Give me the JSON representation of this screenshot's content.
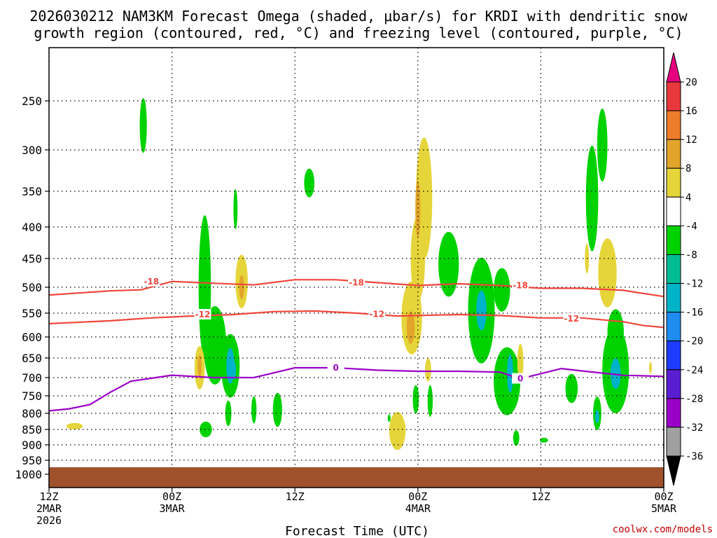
{
  "chart_data": {
    "type": "heatmap",
    "title": "2026030212 NAM3KM Forecast Omega (shaded, µbar/s) for KRDI with dendritic snow growth region (contoured, red, °C) and freezing level (contoured, purple, °C)",
    "title_line1": "2026030212 NAM3KM Forecast Omega (shaded, μbar/s) for KRDI with dendritic snow",
    "title_line2": "growth region (contoured, red, °C) and freezing level (contoured, purple, °C)",
    "xlabel": "Forecast Time (UTC)",
    "ylabel": "",
    "x_range_hours": [
      0,
      60
    ],
    "y_range_mb": [
      1000,
      200
    ],
    "y_scale": "log-pressure",
    "grid": true,
    "x_ticks": [
      {
        "hour": 0,
        "line1": "12Z",
        "line2": "2MAR",
        "line3": "2026"
      },
      {
        "hour": 12,
        "line1": "00Z",
        "line2": "3MAR",
        "line3": ""
      },
      {
        "hour": 24,
        "line1": "12Z",
        "line2": "",
        "line3": ""
      },
      {
        "hour": 36,
        "line1": "00Z",
        "line2": "4MAR",
        "line3": ""
      },
      {
        "hour": 48,
        "line1": "12Z",
        "line2": "",
        "line3": ""
      },
      {
        "hour": 60,
        "line1": "00Z",
        "line2": "5MAR",
        "line3": ""
      }
    ],
    "y_ticks": [
      250,
      300,
      350,
      400,
      450,
      500,
      550,
      600,
      650,
      700,
      750,
      800,
      850,
      900,
      950,
      1000
    ],
    "colorbar": {
      "labels": [
        "20",
        "16",
        "12",
        "8",
        "4",
        "-4",
        "-8",
        "-12",
        "-16",
        "-20",
        "-24",
        "-28",
        "-32",
        "-36"
      ],
      "bins": [
        {
          "lo": 16,
          "hi": 20,
          "color": "#e8383d"
        },
        {
          "lo": 12,
          "hi": 16,
          "color": "#ee7d2a"
        },
        {
          "lo": 8,
          "hi": 12,
          "color": "#e2a52a"
        },
        {
          "lo": 4,
          "hi": 8,
          "color": "#e5d53a"
        },
        {
          "lo": -4,
          "hi": 4,
          "color": "#ffffff"
        },
        {
          "lo": -8,
          "hi": -4,
          "color": "#00d200"
        },
        {
          "lo": -12,
          "hi": -8,
          "color": "#00bd96"
        },
        {
          "lo": -16,
          "hi": -12,
          "color": "#00b4c8"
        },
        {
          "lo": -20,
          "hi": -16,
          "color": "#1e8cf0"
        },
        {
          "lo": -24,
          "hi": -20,
          "color": "#1e3cff"
        },
        {
          "lo": -28,
          "hi": -24,
          "color": "#5a1ed2"
        },
        {
          "lo": -32,
          "hi": -28,
          "color": "#9b00c8"
        },
        {
          "lo": -36,
          "hi": -32,
          "color": "#a0a0a0"
        }
      ],
      "top_arrow_color": "#e6007e",
      "bottom_arrow_color": "#000000"
    },
    "terrain": {
      "color": "#a0522d",
      "surface_mb": 975
    },
    "contours": {
      "dendritic_color": "#f0463c",
      "freezing_color": "#9b00c8",
      "series": [
        {
          "name": "-18",
          "color": "#f0463c",
          "points": [
            [
              0,
              515
            ],
            [
              6,
              507
            ],
            [
              9,
              505
            ],
            [
              12,
              490
            ],
            [
              16,
              493
            ],
            [
              20,
              496
            ],
            [
              24,
              487
            ],
            [
              28,
              487
            ],
            [
              32,
              492
            ],
            [
              36,
              497
            ],
            [
              40,
              494
            ],
            [
              44,
              497
            ],
            [
              48,
              502
            ],
            [
              52,
              502
            ],
            [
              56,
              506
            ],
            [
              60,
              518
            ]
          ],
          "labels": [
            [
              10,
              490
            ],
            [
              30,
              492
            ],
            [
              46,
              497
            ]
          ]
        },
        {
          "name": "-12",
          "color": "#f0463c",
          "points": [
            [
              0,
              572
            ],
            [
              6,
              566
            ],
            [
              10,
              560
            ],
            [
              14,
              556
            ],
            [
              18,
              553
            ],
            [
              22,
              547
            ],
            [
              26,
              546
            ],
            [
              30,
              550
            ],
            [
              34,
              556
            ],
            [
              36,
              555
            ],
            [
              40,
              553
            ],
            [
              44,
              555
            ],
            [
              48,
              560
            ],
            [
              52,
              560
            ],
            [
              56,
              568
            ],
            [
              58,
              576
            ],
            [
              60,
              580
            ]
          ],
          "labels": [
            [
              15,
              553
            ],
            [
              32,
              552
            ],
            [
              51,
              562
            ]
          ]
        },
        {
          "name": "0",
          "color": "#9b00c8",
          "points": [
            [
              0,
              793
            ],
            [
              2,
              787
            ],
            [
              4,
              775
            ],
            [
              6,
              740
            ],
            [
              8,
              710
            ],
            [
              12,
              694
            ],
            [
              16,
              700
            ],
            [
              20,
              700
            ],
            [
              24,
              675
            ],
            [
              28,
              675
            ],
            [
              32,
              681
            ],
            [
              36,
              684
            ],
            [
              40,
              684
            ],
            [
              44,
              686
            ],
            [
              46,
              703
            ],
            [
              48,
              690
            ],
            [
              50,
              677
            ],
            [
              52,
              683
            ],
            [
              56,
              694
            ],
            [
              60,
              697
            ]
          ],
          "labels": [
            [
              28,
              675
            ],
            [
              46,
              703
            ]
          ]
        }
      ]
    },
    "omega_cells": [
      {
        "hour": 9.2,
        "mb": 275,
        "dh": 0.35,
        "dmb": 28,
        "value": -6
      },
      {
        "hour": 25.4,
        "mb": 340,
        "dh": 0.5,
        "dmb": 18,
        "value": -6
      },
      {
        "hour": 18.2,
        "mb": 375,
        "dh": 0.2,
        "dmb": 28,
        "value": -6
      },
      {
        "hour": 15.2,
        "mb": 500,
        "dh": 0.6,
        "dmb": 130,
        "value": -6
      },
      {
        "hour": 16.2,
        "mb": 620,
        "dh": 1.1,
        "dmb": 90,
        "value": -6
      },
      {
        "hour": 17.7,
        "mb": 670,
        "dh": 0.9,
        "dmb": 80,
        "value": -6
      },
      {
        "hour": 17.7,
        "mb": 670,
        "dh": 0.4,
        "dmb": 45,
        "value": -12
      },
      {
        "hour": 18.0,
        "mb": 680,
        "dh": 0.25,
        "dmb": 25,
        "value": -14
      },
      {
        "hour": 17.5,
        "mb": 800,
        "dh": 0.3,
        "dmb": 38,
        "value": -6
      },
      {
        "hour": 15.3,
        "mb": 850,
        "dh": 0.6,
        "dmb": 25,
        "value": -6
      },
      {
        "hour": 20.0,
        "mb": 790,
        "dh": 0.25,
        "dmb": 40,
        "value": -6
      },
      {
        "hour": 22.3,
        "mb": 790,
        "dh": 0.45,
        "dmb": 50,
        "value": -6
      },
      {
        "hour": 18.8,
        "mb": 490,
        "dh": 0.6,
        "dmb": 48,
        "value": 6
      },
      {
        "hour": 18.8,
        "mb": 500,
        "dh": 0.25,
        "dmb": 22,
        "value": 10
      },
      {
        "hour": 14.7,
        "mb": 675,
        "dh": 0.5,
        "dmb": 55,
        "value": 6
      },
      {
        "hour": 14.7,
        "mb": 670,
        "dh": 0.2,
        "dmb": 28,
        "value": 10
      },
      {
        "hour": 2.5,
        "mb": 840,
        "dh": 0.8,
        "dmb": 10,
        "value": 6
      },
      {
        "hour": 36.6,
        "mb": 360,
        "dh": 0.8,
        "dmb": 80,
        "value": 6
      },
      {
        "hour": 36.0,
        "mb": 450,
        "dh": 0.7,
        "dmb": 70,
        "value": 6
      },
      {
        "hour": 36.0,
        "mb": 375,
        "dh": 0.25,
        "dmb": 40,
        "value": 10
      },
      {
        "hour": 35.4,
        "mb": 560,
        "dh": 1.0,
        "dmb": 75,
        "value": 6
      },
      {
        "hour": 35.3,
        "mb": 580,
        "dh": 0.4,
        "dmb": 35,
        "value": 11
      },
      {
        "hour": 34.0,
        "mb": 855,
        "dh": 0.8,
        "dmb": 60,
        "value": 6
      },
      {
        "hour": 37.0,
        "mb": 680,
        "dh": 0.3,
        "dmb": 30,
        "value": 6
      },
      {
        "hour": 39.0,
        "mb": 460,
        "dh": 1.0,
        "dmb": 55,
        "value": -6
      },
      {
        "hour": 35.8,
        "mb": 760,
        "dh": 0.3,
        "dmb": 40,
        "value": -6
      },
      {
        "hour": 37.2,
        "mb": 765,
        "dh": 0.25,
        "dmb": 45,
        "value": -6
      },
      {
        "hour": 33.2,
        "mb": 815,
        "dh": 0.1,
        "dmb": 12,
        "value": -6
      },
      {
        "hour": 42.2,
        "mb": 545,
        "dh": 1.3,
        "dmb": 105,
        "value": -6
      },
      {
        "hour": 42.2,
        "mb": 545,
        "dh": 0.5,
        "dmb": 40,
        "value": -12
      },
      {
        "hour": 44.2,
        "mb": 505,
        "dh": 0.8,
        "dmb": 40,
        "value": -6
      },
      {
        "hour": 44.7,
        "mb": 710,
        "dh": 1.3,
        "dmb": 90,
        "value": -6
      },
      {
        "hour": 45.0,
        "mb": 690,
        "dh": 0.3,
        "dmb": 50,
        "value": -14
      },
      {
        "hour": 46.0,
        "mb": 660,
        "dh": 0.3,
        "dmb": 45,
        "value": 6
      },
      {
        "hour": 45.6,
        "mb": 878,
        "dh": 0.3,
        "dmb": 25,
        "value": -6
      },
      {
        "hour": 48.3,
        "mb": 885,
        "dh": 0.4,
        "dmb": 8,
        "value": -6
      },
      {
        "hour": 51.0,
        "mb": 730,
        "dh": 0.6,
        "dmb": 40,
        "value": -6
      },
      {
        "hour": 53.0,
        "mb": 360,
        "dh": 0.6,
        "dmb": 70,
        "value": -6
      },
      {
        "hour": 54.0,
        "mb": 295,
        "dh": 0.5,
        "dmb": 40,
        "value": -6
      },
      {
        "hour": 54.5,
        "mb": 475,
        "dh": 0.9,
        "dmb": 60,
        "value": 6
      },
      {
        "hour": 52.5,
        "mb": 450,
        "dh": 0.2,
        "dmb": 25,
        "value": 6
      },
      {
        "hour": 55.3,
        "mb": 590,
        "dh": 0.8,
        "dmb": 50,
        "value": -6
      },
      {
        "hour": 55.3,
        "mb": 680,
        "dh": 1.3,
        "dmb": 110,
        "value": -6
      },
      {
        "hour": 55.3,
        "mb": 690,
        "dh": 0.5,
        "dmb": 40,
        "value": -14
      },
      {
        "hour": 53.5,
        "mb": 800,
        "dh": 0.4,
        "dmb": 50,
        "value": -6
      },
      {
        "hour": 53.5,
        "mb": 810,
        "dh": 0.2,
        "dmb": 20,
        "value": -12
      },
      {
        "hour": 58.7,
        "mb": 675,
        "dh": 0.1,
        "dmb": 15,
        "value": 6
      }
    ]
  },
  "credit": "coolwx.com/models"
}
